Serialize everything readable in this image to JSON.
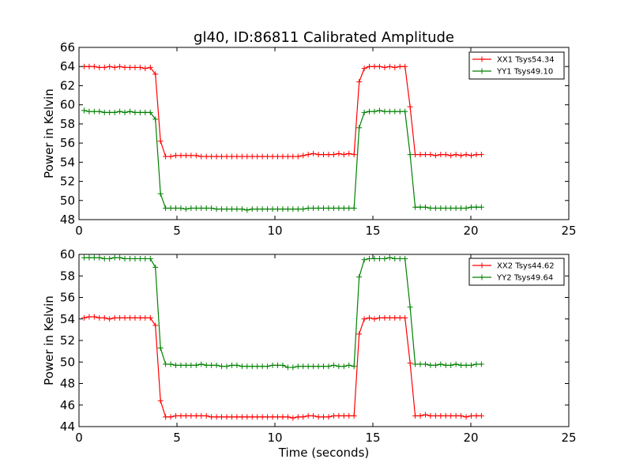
{
  "chart_data": [
    {
      "type": "line",
      "title": "gl40, ID:86811 Calibrated Amplitude",
      "xlabel": "",
      "ylabel": "Power in Kelvin",
      "xlim": [
        0,
        25
      ],
      "ylim": [
        48,
        66
      ],
      "xticks": [
        "0",
        "5",
        "10",
        "15",
        "20",
        "25"
      ],
      "yticks": [
        "48",
        "50",
        "52",
        "54",
        "56",
        "58",
        "60",
        "62",
        "64",
        "66"
      ],
      "grid": false,
      "legend_position": "top-right",
      "series": [
        {
          "name": "XX1 Tsys54.34",
          "color": "#ff0000",
          "x": [
            0.26,
            0.52,
            0.78,
            1.04,
            1.3,
            1.56,
            1.82,
            2.08,
            2.34,
            2.6,
            2.86,
            3.12,
            3.38,
            3.64,
            3.9,
            4.16,
            4.42,
            4.68,
            4.94,
            5.2,
            5.46,
            5.72,
            5.98,
            6.24,
            6.5,
            6.76,
            7.02,
            7.28,
            7.54,
            7.8,
            8.06,
            8.32,
            8.58,
            8.84,
            9.1,
            9.36,
            9.62,
            9.88,
            10.14,
            10.4,
            10.66,
            10.92,
            11.18,
            11.44,
            11.7,
            11.96,
            12.22,
            12.48,
            12.74,
            13.0,
            13.26,
            13.52,
            13.78,
            14.04,
            14.3,
            14.56,
            14.82,
            15.08,
            15.34,
            15.6,
            15.86,
            16.12,
            16.38,
            16.64,
            16.9,
            17.16,
            17.42,
            17.68,
            17.94,
            18.2,
            18.46,
            18.72,
            18.98,
            19.24,
            19.5,
            19.76,
            20.02,
            20.28,
            20.54
          ],
          "values": [
            64.0,
            64.0,
            64.0,
            63.9,
            63.9,
            64.0,
            63.9,
            64.0,
            63.9,
            63.9,
            63.9,
            63.9,
            63.8,
            63.9,
            63.2,
            56.2,
            54.6,
            54.6,
            54.7,
            54.7,
            54.7,
            54.7,
            54.7,
            54.6,
            54.6,
            54.6,
            54.6,
            54.6,
            54.6,
            54.6,
            54.6,
            54.6,
            54.6,
            54.6,
            54.6,
            54.6,
            54.6,
            54.6,
            54.6,
            54.6,
            54.6,
            54.6,
            54.6,
            54.7,
            54.8,
            54.9,
            54.8,
            54.8,
            54.8,
            54.8,
            54.9,
            54.8,
            54.9,
            54.8,
            62.4,
            63.8,
            64.0,
            64.0,
            64.0,
            63.9,
            64.0,
            63.9,
            64.0,
            64.0,
            59.8,
            54.8,
            54.8,
            54.8,
            54.8,
            54.7,
            54.8,
            54.8,
            54.7,
            54.8,
            54.7,
            54.8,
            54.7,
            54.8,
            54.8
          ]
        },
        {
          "name": "YY1 Tsys49.10",
          "color": "#008000",
          "x": [
            0.26,
            0.52,
            0.78,
            1.04,
            1.3,
            1.56,
            1.82,
            2.08,
            2.34,
            2.6,
            2.86,
            3.12,
            3.38,
            3.64,
            3.9,
            4.16,
            4.42,
            4.68,
            4.94,
            5.2,
            5.46,
            5.72,
            5.98,
            6.24,
            6.5,
            6.76,
            7.02,
            7.28,
            7.54,
            7.8,
            8.06,
            8.32,
            8.58,
            8.84,
            9.1,
            9.36,
            9.62,
            9.88,
            10.14,
            10.4,
            10.66,
            10.92,
            11.18,
            11.44,
            11.7,
            11.96,
            12.22,
            12.48,
            12.74,
            13.0,
            13.26,
            13.52,
            13.78,
            14.04,
            14.3,
            14.56,
            14.82,
            15.08,
            15.34,
            15.6,
            15.86,
            16.12,
            16.38,
            16.64,
            16.9,
            17.16,
            17.42,
            17.68,
            17.94,
            18.2,
            18.46,
            18.72,
            18.98,
            19.24,
            19.5,
            19.76,
            20.02,
            20.28,
            20.54
          ],
          "values": [
            59.4,
            59.3,
            59.3,
            59.3,
            59.2,
            59.2,
            59.2,
            59.3,
            59.2,
            59.3,
            59.2,
            59.2,
            59.2,
            59.2,
            58.5,
            50.7,
            49.2,
            49.2,
            49.2,
            49.2,
            49.1,
            49.2,
            49.2,
            49.2,
            49.2,
            49.2,
            49.1,
            49.1,
            49.1,
            49.1,
            49.1,
            49.1,
            49.0,
            49.1,
            49.1,
            49.1,
            49.1,
            49.1,
            49.1,
            49.1,
            49.1,
            49.1,
            49.1,
            49.1,
            49.2,
            49.2,
            49.2,
            49.2,
            49.2,
            49.2,
            49.2,
            49.2,
            49.2,
            49.2,
            57.6,
            59.2,
            59.3,
            59.3,
            59.4,
            59.3,
            59.3,
            59.3,
            59.3,
            59.3,
            54.8,
            49.3,
            49.3,
            49.3,
            49.2,
            49.2,
            49.2,
            49.2,
            49.2,
            49.2,
            49.2,
            49.2,
            49.3,
            49.3,
            49.3
          ]
        }
      ]
    },
    {
      "type": "line",
      "title": "",
      "xlabel": "Time (seconds)",
      "ylabel": "Power in Kelvin",
      "xlim": [
        0,
        25
      ],
      "ylim": [
        44,
        60
      ],
      "xticks": [
        "0",
        "5",
        "10",
        "15",
        "20",
        "25"
      ],
      "yticks": [
        "44",
        "46",
        "48",
        "50",
        "52",
        "54",
        "56",
        "58",
        "60"
      ],
      "grid": false,
      "legend_position": "top-right",
      "series": [
        {
          "name": "XX2 Tsys44.62",
          "color": "#ff0000",
          "x": [
            0.26,
            0.52,
            0.78,
            1.04,
            1.3,
            1.56,
            1.82,
            2.08,
            2.34,
            2.6,
            2.86,
            3.12,
            3.38,
            3.64,
            3.9,
            4.16,
            4.42,
            4.68,
            4.94,
            5.2,
            5.46,
            5.72,
            5.98,
            6.24,
            6.5,
            6.76,
            7.02,
            7.28,
            7.54,
            7.8,
            8.06,
            8.32,
            8.58,
            8.84,
            9.1,
            9.36,
            9.62,
            9.88,
            10.14,
            10.4,
            10.66,
            10.92,
            11.18,
            11.44,
            11.7,
            11.96,
            12.22,
            12.48,
            12.74,
            13.0,
            13.26,
            13.52,
            13.78,
            14.04,
            14.3,
            14.56,
            14.82,
            15.08,
            15.34,
            15.6,
            15.86,
            16.12,
            16.38,
            16.64,
            16.9,
            17.16,
            17.42,
            17.68,
            17.94,
            18.2,
            18.46,
            18.72,
            18.98,
            19.24,
            19.5,
            19.76,
            20.02,
            20.28,
            20.54
          ],
          "values": [
            54.1,
            54.2,
            54.2,
            54.1,
            54.1,
            54.0,
            54.1,
            54.1,
            54.1,
            54.1,
            54.1,
            54.1,
            54.1,
            54.1,
            53.4,
            46.4,
            44.9,
            44.9,
            45.0,
            45.0,
            45.0,
            45.0,
            45.0,
            45.0,
            45.0,
            44.9,
            44.9,
            44.9,
            44.9,
            44.9,
            44.9,
            44.9,
            44.9,
            44.9,
            44.9,
            44.9,
            44.9,
            44.9,
            44.9,
            44.9,
            44.9,
            44.8,
            44.9,
            44.9,
            45.0,
            45.0,
            44.9,
            44.9,
            44.9,
            45.0,
            45.0,
            45.0,
            45.0,
            45.0,
            52.6,
            54.0,
            54.1,
            54.0,
            54.1,
            54.1,
            54.1,
            54.1,
            54.1,
            54.1,
            49.9,
            45.0,
            45.0,
            45.1,
            45.0,
            45.0,
            45.0,
            45.0,
            45.0,
            45.0,
            45.0,
            44.9,
            45.0,
            45.0,
            45.0
          ]
        },
        {
          "name": "YY2 Tsys49.64",
          "color": "#008000",
          "x": [
            0.26,
            0.52,
            0.78,
            1.04,
            1.3,
            1.56,
            1.82,
            2.08,
            2.34,
            2.6,
            2.86,
            3.12,
            3.38,
            3.64,
            3.9,
            4.16,
            4.42,
            4.68,
            4.94,
            5.2,
            5.46,
            5.72,
            5.98,
            6.24,
            6.5,
            6.76,
            7.02,
            7.28,
            7.54,
            7.8,
            8.06,
            8.32,
            8.58,
            8.84,
            9.1,
            9.36,
            9.62,
            9.88,
            10.14,
            10.4,
            10.66,
            10.92,
            11.18,
            11.44,
            11.7,
            11.96,
            12.22,
            12.48,
            12.74,
            13.0,
            13.26,
            13.52,
            13.78,
            14.04,
            14.3,
            14.56,
            14.82,
            15.08,
            15.34,
            15.6,
            15.86,
            16.12,
            16.38,
            16.64,
            16.9,
            17.16,
            17.42,
            17.68,
            17.94,
            18.2,
            18.46,
            18.72,
            18.98,
            19.24,
            19.5,
            19.76,
            20.02,
            20.28,
            20.54
          ],
          "values": [
            59.7,
            59.7,
            59.7,
            59.7,
            59.6,
            59.6,
            59.7,
            59.7,
            59.6,
            59.6,
            59.6,
            59.6,
            59.6,
            59.6,
            58.8,
            51.3,
            49.8,
            49.8,
            49.7,
            49.7,
            49.7,
            49.7,
            49.7,
            49.8,
            49.7,
            49.7,
            49.7,
            49.6,
            49.6,
            49.7,
            49.7,
            49.6,
            49.6,
            49.6,
            49.6,
            49.6,
            49.6,
            49.7,
            49.7,
            49.7,
            49.5,
            49.5,
            49.6,
            49.6,
            49.6,
            49.6,
            49.6,
            49.6,
            49.6,
            49.7,
            49.6,
            49.6,
            49.7,
            49.6,
            57.9,
            59.5,
            59.6,
            59.6,
            59.6,
            59.6,
            59.7,
            59.6,
            59.6,
            59.6,
            55.1,
            49.8,
            49.8,
            49.8,
            49.7,
            49.7,
            49.8,
            49.7,
            49.7,
            49.8,
            49.7,
            49.7,
            49.7,
            49.8,
            49.8
          ]
        }
      ]
    }
  ]
}
